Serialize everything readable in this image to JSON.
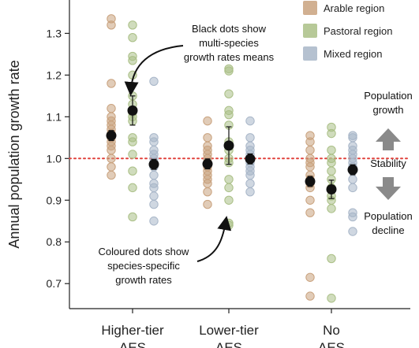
{
  "chart_data": {
    "type": "scatter",
    "ylabel": "Annual population growth rate",
    "xlabel": "",
    "ylim": [
      0.64,
      1.38
    ],
    "yticks": [
      0.7,
      0.8,
      0.9,
      1.0,
      1.1,
      1.2,
      1.3
    ],
    "ytick_labels": [
      "0.7",
      "0.8",
      "0.9",
      "1.0",
      "1.1",
      "1.2",
      "1.3"
    ],
    "categories": [
      "Higher-tier AES",
      "Lower-tier AES",
      "No AES"
    ],
    "reference_line": 1.0,
    "legend_placement": "top-right",
    "series": [
      {
        "name": "Arable region",
        "color": "#c9a27e",
        "points": [
          [
            1.335,
            1.32,
            1.18,
            1.12,
            1.1,
            1.09,
            1.08,
            1.07,
            1.06,
            1.05,
            1.04,
            1.03,
            1.02,
            1.0,
            0.98,
            0.96
          ],
          [
            1.09,
            1.05,
            1.03,
            1.02,
            1.01,
            1.0,
            0.99,
            0.98,
            0.97,
            0.96,
            0.95,
            0.94,
            0.92,
            0.89
          ],
          [
            1.055,
            1.04,
            1.02,
            1.0,
            0.99,
            0.98,
            0.96,
            0.95,
            0.94,
            0.93,
            0.9,
            0.87,
            0.715,
            0.67
          ]
        ],
        "means": [
          1.055,
          0.987,
          0.945
        ],
        "errors": [
          0.012,
          0.012,
          0.012
        ]
      },
      {
        "name": "Pastoral region",
        "color": "#aabf86",
        "points": [
          [
            1.32,
            1.29,
            1.245,
            1.235,
            1.2,
            1.15,
            1.13,
            1.11,
            1.1,
            1.09,
            1.05,
            1.04,
            1.01,
            0.97,
            0.93,
            0.86
          ],
          [
            1.215,
            1.21,
            1.155,
            1.115,
            1.105,
            1.08,
            1.04,
            1.02,
            1.0,
            0.99,
            0.95,
            0.93,
            0.9,
            0.845,
            0.84
          ],
          [
            1.075,
            1.06,
            1.02,
            1.0,
            0.99,
            0.97,
            0.95,
            0.93,
            0.91,
            0.9,
            0.88,
            0.76,
            0.665
          ]
        ],
        "means": [
          1.115,
          1.031,
          0.926
        ],
        "errors": [
          0.035,
          0.045,
          0.022
        ]
      },
      {
        "name": "Mixed region",
        "color": "#a8b6c8",
        "points": [
          [
            1.185,
            1.05,
            1.04,
            1.02,
            1.01,
            1.0,
            0.99,
            0.98,
            0.96,
            0.94,
            0.93,
            0.91,
            0.89,
            0.85
          ],
          [
            1.09,
            1.05,
            1.03,
            1.02,
            1.01,
            1.0,
            0.99,
            0.98,
            0.97,
            0.96,
            0.94,
            0.92
          ],
          [
            1.055,
            1.05,
            1.03,
            1.02,
            1.01,
            1.0,
            0.99,
            0.98,
            0.97,
            0.95,
            0.93,
            0.87,
            0.86,
            0.825
          ]
        ],
        "means": [
          0.986,
          0.999,
          0.973
        ],
        "errors": [
          0.012,
          0.012,
          0.012
        ]
      }
    ],
    "annotations": {
      "black_dots": "Black dots show\nmulti-species\ngrowth rates means",
      "coloured_dots": "Coloured dots show\nspecies-specific\ngrowth rates"
    },
    "side_labels": {
      "growth": "Population\ngrowth",
      "stability": "Stability",
      "decline": "Population\ndecline"
    },
    "colors": {
      "mean_dot": "#111111",
      "reference_line": "#e0413b",
      "arrow_fill": "#8a8a8a"
    }
  }
}
